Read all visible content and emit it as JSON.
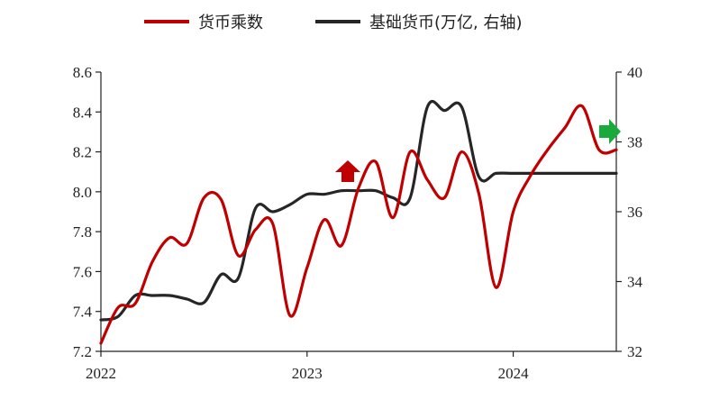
{
  "colors": {
    "money_multiplier": "#c00000",
    "base_money": "#262626",
    "up_arrow": "#c00000",
    "right_arrow": "#1aaa3c",
    "axis": "#222222"
  },
  "legend": {
    "money_multiplier": "货币乘数",
    "base_money": "基础货币(万亿, 右轴)"
  },
  "chart_data": {
    "type": "line",
    "x_ticks": [
      "2022",
      "2023",
      "2024"
    ],
    "xlim": [
      "2022-01",
      "2024-07"
    ],
    "y_left": {
      "ylim": [
        7.2,
        8.6
      ],
      "ticks": [
        "7.2",
        "7.4",
        "7.6",
        "7.8",
        "8.0",
        "8.2",
        "8.4",
        "8.6"
      ]
    },
    "y_right": {
      "ylim": [
        32,
        40
      ],
      "ticks": [
        "32",
        "34",
        "36",
        "38",
        "40"
      ]
    },
    "series": [
      {
        "name": "货币乘数",
        "key": "money_multiplier",
        "axis": "left",
        "x": [
          "2022-01",
          "2022-02",
          "2022-03",
          "2022-04",
          "2022-05",
          "2022-06",
          "2022-07",
          "2022-08",
          "2022-09",
          "2022-10",
          "2022-11",
          "2022-12",
          "2023-01",
          "2023-02",
          "2023-03",
          "2023-04",
          "2023-05",
          "2023-06",
          "2023-07",
          "2023-08",
          "2023-09",
          "2023-10",
          "2023-11",
          "2023-12",
          "2024-01",
          "2024-02",
          "2024-03",
          "2024-04",
          "2024-05",
          "2024-06",
          "2024-07"
        ],
        "values": [
          7.24,
          7.42,
          7.44,
          7.65,
          7.77,
          7.74,
          7.97,
          7.96,
          7.68,
          7.81,
          7.84,
          7.38,
          7.62,
          7.86,
          7.73,
          8.02,
          8.15,
          7.87,
          8.2,
          8.06,
          7.97,
          8.2,
          7.99,
          7.52,
          7.9,
          8.08,
          8.21,
          8.32,
          8.43,
          8.21,
          8.21
        ]
      },
      {
        "name": "基础货币(万亿, 右轴)",
        "key": "base_money",
        "axis": "right",
        "x": [
          "2022-01",
          "2022-02",
          "2022-03",
          "2022-04",
          "2022-05",
          "2022-06",
          "2022-07",
          "2022-08",
          "2022-09",
          "2022-10",
          "2022-11",
          "2022-12",
          "2023-01",
          "2023-02",
          "2023-03",
          "2023-04",
          "2023-05",
          "2023-06",
          "2023-07",
          "2023-08",
          "2023-09",
          "2023-10",
          "2023-11",
          "2023-12",
          "2024-01",
          "2024-02",
          "2024-03",
          "2024-04",
          "2024-05",
          "2024-06",
          "2024-07"
        ],
        "values": [
          32.9,
          33.0,
          33.6,
          33.6,
          33.6,
          33.5,
          33.4,
          34.2,
          34.1,
          36.1,
          36.0,
          36.2,
          36.5,
          36.5,
          36.6,
          36.6,
          36.6,
          36.4,
          36.4,
          39.0,
          38.9,
          39.0,
          37.0,
          37.1,
          37.1,
          37.1,
          37.1,
          37.1,
          37.1,
          37.1,
          37.1
        ]
      }
    ],
    "markers": [
      {
        "type": "up-arrow",
        "color_key": "up_arrow"
      },
      {
        "type": "right-arrow",
        "color_key": "right_arrow"
      }
    ]
  }
}
